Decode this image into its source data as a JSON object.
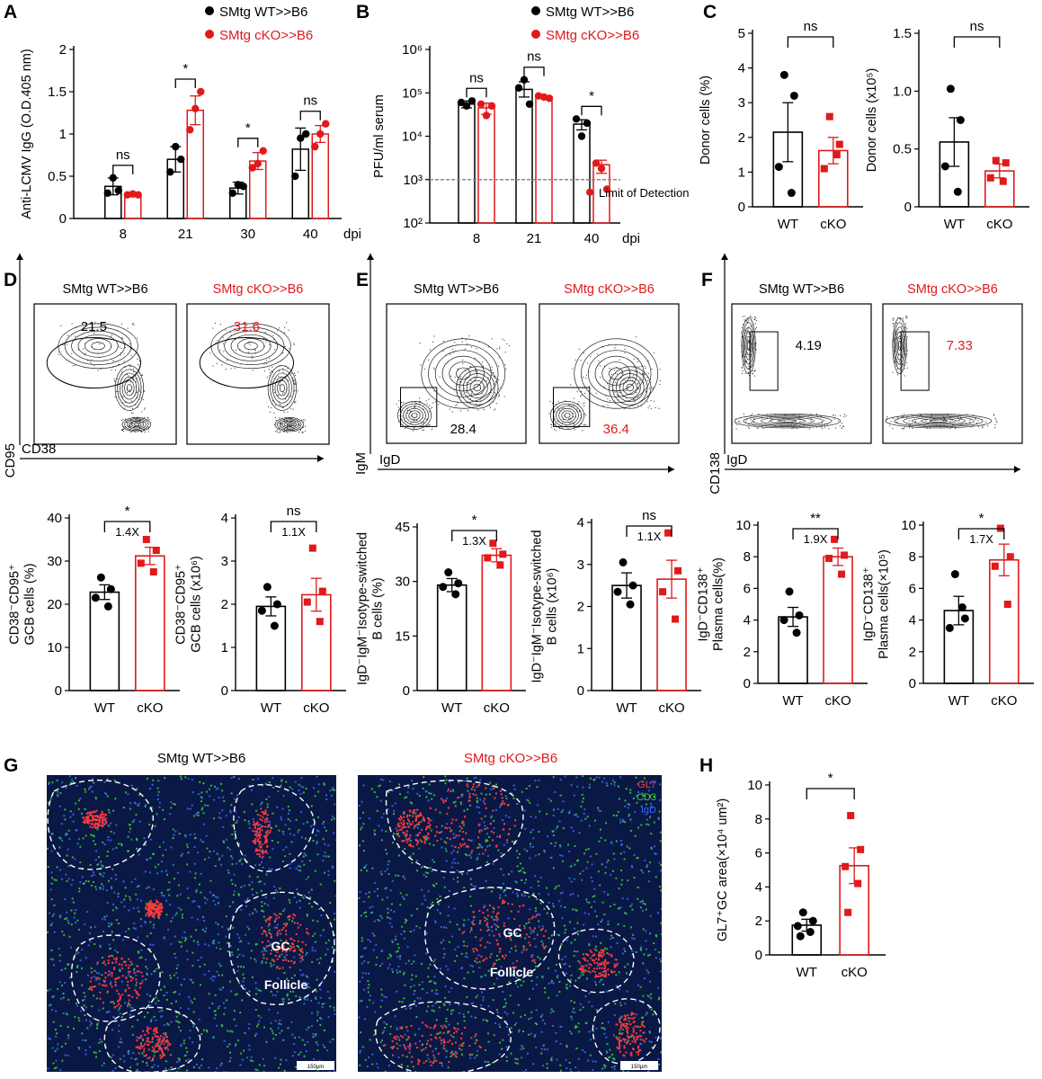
{
  "colors": {
    "wt": "#000000",
    "cko": "#e0191b",
    "accent_red": "#c1272d"
  },
  "panel_letters": {
    "A": "A",
    "B": "B",
    "C": "C",
    "D": "D",
    "E": "E",
    "F": "F",
    "G": "G",
    "H": "H"
  },
  "legend": {
    "wt": "SMtg WT>>B6",
    "cko": "SMtg cKO>>B6"
  },
  "chart_data": [
    {
      "id": "A",
      "type": "bar",
      "ylabel": "Anti-LCMV IgG (O.D.405 nm)",
      "xlabel": "dpi",
      "categories": [
        "8",
        "21",
        "30",
        "40"
      ],
      "ylim": [
        0,
        2
      ],
      "yticks": [
        "0",
        "0.5",
        "1",
        "1.5",
        "2"
      ],
      "series": [
        {
          "name": "SMtg WT>>B6",
          "values": [
            0.38,
            0.7,
            0.36,
            0.82
          ],
          "err": [
            0.1,
            0.15,
            0.07,
            0.25
          ],
          "points": [
            [
              0.3,
              0.48,
              0.33
            ],
            [
              0.55,
              0.85,
              0.7
            ],
            [
              0.3,
              0.4,
              0.38
            ],
            [
              0.5,
              0.95,
              1.0
            ]
          ]
        },
        {
          "name": "SMtg cKO>>B6",
          "values": [
            0.28,
            1.28,
            0.68,
            1.0
          ],
          "err": [
            0.01,
            0.17,
            0.1,
            0.1
          ],
          "points": [
            [
              0.28,
              0.29,
              0.28
            ],
            [
              1.05,
              1.3,
              1.5
            ],
            [
              0.6,
              0.65,
              0.8
            ],
            [
              0.85,
              1.0,
              1.12
            ]
          ]
        }
      ],
      "sig": [
        "ns",
        "*",
        "*",
        "ns"
      ]
    },
    {
      "id": "B",
      "type": "bar",
      "scale": "log",
      "ylabel": "PFU/ml serum",
      "xlabel": "dpi",
      "categories": [
        "8",
        "21",
        "40"
      ],
      "ylim": [
        100,
        1000000
      ],
      "yticks": [
        "10²",
        "10³",
        "10⁴",
        "10⁵",
        "10⁶"
      ],
      "series": [
        {
          "name": "SMtg WT>>B6",
          "values": [
            55000,
            120000,
            19000
          ],
          "err_lo": [
            45000,
            80000,
            14000
          ],
          "err_hi": [
            65000,
            180000,
            24000
          ],
          "points": [
            [
              60000,
              50000,
              65000
            ],
            [
              130000,
              200000,
              55000
            ],
            [
              25000,
              10000,
              20000
            ]
          ]
        },
        {
          "name": "SMtg cKO>>B6",
          "values": [
            45000,
            80000,
            2200
          ],
          "err_lo": [
            32000,
            76000,
            1400
          ],
          "err_hi": [
            58000,
            85000,
            2800
          ],
          "points": [
            [
              55000,
              30000,
              50000
            ],
            [
              85000,
              80000,
              75000
            ],
            [
              2400,
              1800,
              600
            ]
          ]
        }
      ],
      "sig": [
        "ns",
        "ns",
        "*"
      ],
      "detection_limit": 1000,
      "detection_label": "Limit of Detection"
    },
    {
      "id": "C1",
      "type": "bar",
      "ylabel": "Donor cells (%)",
      "categories": [
        "WT",
        "cKO"
      ],
      "ylim": [
        0,
        5
      ],
      "yticks": [
        "0",
        "1",
        "2",
        "3",
        "4",
        "5"
      ],
      "values": [
        2.15,
        1.62
      ],
      "err": [
        0.85,
        0.38
      ],
      "points": [
        [
          3.8,
          3.2,
          1.15,
          0.4
        ],
        [
          2.6,
          1.8,
          1.1,
          1.5
        ]
      ],
      "sig": "ns"
    },
    {
      "id": "C2",
      "type": "bar",
      "ylabel": "Donor cells (x10⁵)",
      "categories": [
        "WT",
        "cKO"
      ],
      "ylim": [
        0,
        1.5
      ],
      "yticks": [
        "0",
        "0.5",
        "1.0",
        "1.5"
      ],
      "values": [
        0.56,
        0.31
      ],
      "err": [
        0.21,
        0.06
      ],
      "points": [
        [
          1.02,
          0.75,
          0.35,
          0.13
        ],
        [
          0.4,
          0.38,
          0.25,
          0.22
        ]
      ],
      "sig": "ns"
    },
    {
      "id": "D1",
      "type": "bar",
      "ylabel": [
        "CD38⁻CD95⁺",
        "GCB cells (%)"
      ],
      "categories": [
        "WT",
        "cKO"
      ],
      "ylim": [
        0,
        40
      ],
      "yticks": [
        "0",
        "10",
        "20",
        "30",
        "40"
      ],
      "values": [
        22.8,
        31.2
      ],
      "err": [
        1.7,
        2.0
      ],
      "points": [
        [
          26.2,
          23.5,
          21.5,
          19.5
        ],
        [
          35,
          32.5,
          29.5,
          27.5
        ]
      ],
      "sig": "*",
      "fold": "1.4X"
    },
    {
      "id": "D2",
      "type": "bar",
      "ylabel": [
        "CD38⁻CD95⁺",
        "GCB cells (x10⁶)"
      ],
      "categories": [
        "WT",
        "cKO"
      ],
      "ylim": [
        0,
        4
      ],
      "yticks": [
        "0",
        "1",
        "2",
        "3",
        "4"
      ],
      "values": [
        1.95,
        2.22
      ],
      "err": [
        0.22,
        0.38
      ],
      "points": [
        [
          2.4,
          2.0,
          1.85,
          1.5
        ],
        [
          3.3,
          2.3,
          2.05,
          1.6
        ]
      ],
      "sig": "ns",
      "fold": "1.1X"
    },
    {
      "id": "E1",
      "type": "bar",
      "ylabel": [
        "IgD⁻IgM⁻Isotype-switched",
        "B cells (%)"
      ],
      "categories": [
        "WT",
        "cKO"
      ],
      "ylim": [
        0,
        45
      ],
      "yticks": [
        "0",
        "15",
        "30",
        "45"
      ],
      "values": [
        29,
        37.2
      ],
      "err": [
        1.8,
        1.8
      ],
      "points": [
        [
          32.5,
          29.5,
          28.5,
          26.5
        ],
        [
          40.5,
          37.5,
          36.5,
          34.5
        ]
      ],
      "sig": "*",
      "fold": "1.3X"
    },
    {
      "id": "E2",
      "type": "bar",
      "ylabel": [
        "IgD⁻IgM⁻Isotype-switched",
        "B cells (x10⁶)"
      ],
      "categories": [
        "WT",
        "cKO"
      ],
      "ylim": [
        0,
        4
      ],
      "yticks": [
        "0",
        "1",
        "2",
        "3",
        "4"
      ],
      "values": [
        2.5,
        2.65
      ],
      "err": [
        0.3,
        0.45
      ],
      "points": [
        [
          3.05,
          2.5,
          2.35,
          2.05
        ],
        [
          3.75,
          2.85,
          2.35,
          1.7
        ]
      ],
      "sig": "ns",
      "fold": "1.1X"
    },
    {
      "id": "F1",
      "type": "bar",
      "ylabel": [
        "IgD⁻CD138⁺",
        "Plasma cells(%)"
      ],
      "categories": [
        "WT",
        "cKO"
      ],
      "ylim": [
        0,
        10
      ],
      "yticks": [
        "0",
        "2",
        "4",
        "6",
        "8",
        "10"
      ],
      "values": [
        4.2,
        8.0
      ],
      "err": [
        0.6,
        0.55
      ],
      "points": [
        [
          5.8,
          4.3,
          4.0,
          3.2
        ],
        [
          9.1,
          8.1,
          7.9,
          6.9
        ]
      ],
      "sig": "**",
      "fold": "1.9X"
    },
    {
      "id": "F2",
      "type": "bar",
      "ylabel": [
        "IgD⁻CD138⁺",
        "Plasma cells(×10⁵)"
      ],
      "categories": [
        "WT",
        "cKO"
      ],
      "ylim": [
        0,
        10
      ],
      "yticks": [
        "0",
        "2",
        "4",
        "6",
        "8",
        "10"
      ],
      "values": [
        4.6,
        7.8
      ],
      "err": [
        0.9,
        1.0
      ],
      "points": [
        [
          6.9,
          4.1,
          3.5,
          4.8
        ],
        [
          9.8,
          8.0,
          7.4,
          5.0
        ]
      ],
      "sig": "*",
      "fold": "1.7X"
    },
    {
      "id": "H",
      "type": "bar",
      "ylabel": "GL7⁺GC area(×10⁴ um²)",
      "categories": [
        "WT",
        "cKO"
      ],
      "ylim": [
        0,
        10
      ],
      "yticks": [
        "0",
        "2",
        "4",
        "6",
        "8",
        "10"
      ],
      "values": [
        1.75,
        5.25
      ],
      "err": [
        0.35,
        1.05
      ],
      "points": [
        [
          2.5,
          2.0,
          1.7,
          1.35,
          1.1
        ],
        [
          8.2,
          6.2,
          5.2,
          4.2,
          2.5
        ]
      ],
      "sig": "*"
    }
  ],
  "facs": {
    "D": {
      "xlabel": "CD38",
      "ylabel": "CD95",
      "wt_title": "SMtg WT>>B6",
      "cko_title": "SMtg cKO>>B6",
      "wt_value": "21.5",
      "cko_value": "31.6"
    },
    "E": {
      "xlabel": "IgD",
      "ylabel": "IgM",
      "wt_title": "SMtg WT>>B6",
      "cko_title": "SMtg cKO>>B6",
      "wt_value": "28.4",
      "cko_value": "36.4"
    },
    "F": {
      "xlabel": "IgD",
      "ylabel": "CD138",
      "wt_title": "SMtg WT>>B6",
      "cko_title": "SMtg cKO>>B6",
      "wt_value": "4.19",
      "cko_value": "7.33"
    }
  },
  "histology": {
    "wt_title": "SMtg WT>>B6",
    "cko_title": "SMtg cKO>>B6",
    "channels": [
      "GL7",
      "CD3",
      "IgD"
    ],
    "channel_colors": [
      "#ff3b3b",
      "#3ecf3e",
      "#3b6bff"
    ],
    "gc_label": "GC",
    "follicle_label": "Follicle",
    "scale_bar": "150μm"
  }
}
